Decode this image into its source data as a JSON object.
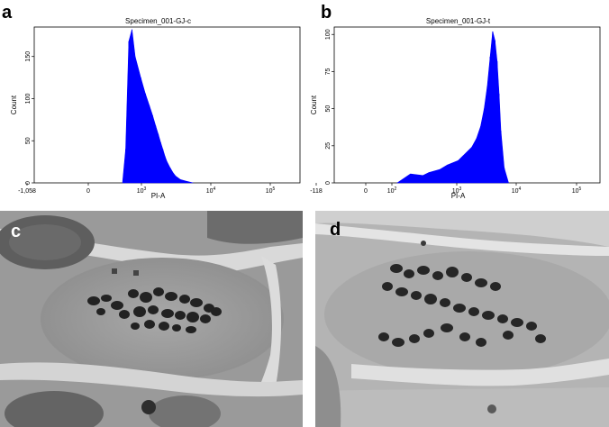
{
  "figure": {
    "panels": [
      {
        "letter": "a"
      },
      {
        "letter": "b"
      },
      {
        "letter": "c"
      },
      {
        "letter": "d"
      }
    ]
  },
  "chart_data": [
    {
      "type": "area",
      "title": "Specimen_001-GJ-c",
      "xlabel": "PI-A",
      "ylabel": "Count",
      "color": "#0000ff",
      "x_scale": "biexponential",
      "x_ticks": [
        "-1,058",
        "0",
        "10^3",
        "10^4",
        "10^5"
      ],
      "y_ticks": [
        "0",
        "50",
        "100",
        "150"
      ],
      "ylim": [
        0,
        185
      ],
      "x": [
        0,
        50,
        100,
        150,
        200,
        250,
        300,
        350,
        400,
        450,
        500,
        550,
        600,
        650,
        700,
        800,
        900,
        1000,
        1200,
        1500,
        2000
      ],
      "y": [
        0,
        40,
        168,
        182,
        150,
        125,
        106,
        92,
        80,
        68,
        58,
        48,
        40,
        32,
        26,
        18,
        12,
        8,
        4,
        2,
        0
      ]
    },
    {
      "type": "area",
      "title": "Specimen_001-GJ-t",
      "xlabel": "PI-A",
      "ylabel": "Count",
      "color": "#0000ff",
      "x_scale": "biexponential",
      "x_ticks": [
        "-118",
        "0",
        "10^2",
        "10^3",
        "10^4",
        "10^5"
      ],
      "y_ticks": [
        "0",
        "25",
        "50",
        "75",
        "100"
      ],
      "ylim": [
        0,
        105
      ],
      "x": [
        0,
        50,
        80,
        100,
        150,
        200,
        300,
        400,
        500,
        600,
        700,
        800,
        900,
        1000,
        1100,
        1200,
        1300,
        1400,
        1500,
        1700,
        2000
      ],
      "y": [
        0,
        6,
        5,
        7,
        9,
        12,
        15,
        20,
        24,
        30,
        38,
        50,
        65,
        85,
        102,
        96,
        82,
        60,
        35,
        10,
        0
      ]
    }
  ]
}
